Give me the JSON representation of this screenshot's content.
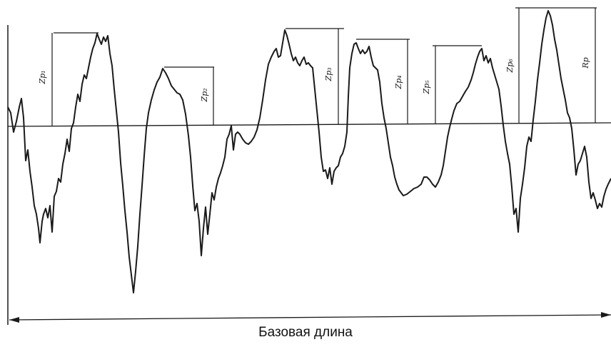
{
  "caption": "Базовая длина",
  "labels": {
    "zp1": "Zp₁",
    "zp2": "Zp₂",
    "zp3": "Zp₃",
    "zp4": "Zp₄",
    "zp5": "Zp₅",
    "zp6": "Zp₆",
    "rp": "Rp"
  },
  "colors": {
    "ink": "#1a1a1a",
    "background": "#ffffff"
  }
}
